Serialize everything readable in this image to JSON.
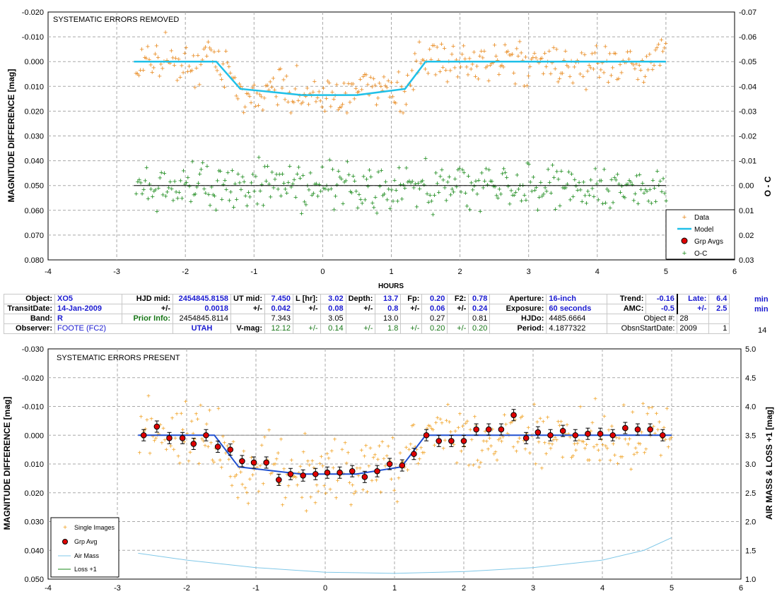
{
  "chart_data": [
    {
      "type": "scatter",
      "title": "SYSTEMATIC ERRORS REMOVED",
      "xlabel": "HOURS",
      "ylabel": "MAGNITUDE DIFFERENCE [mag]",
      "y2label": "O - C",
      "xlim": [
        -4,
        6
      ],
      "ylim": [
        -0.02,
        0.08
      ],
      "y_inverted": true,
      "y2lim": [
        -0.07,
        0.03
      ],
      "xticks": [
        "-4",
        "-3",
        "-2",
        "-1",
        "0",
        "1",
        "2",
        "3",
        "4",
        "5",
        "6"
      ],
      "yticks": [
        "-0.020",
        "-0.010",
        "0.000",
        "0.010",
        "0.020",
        "0.030",
        "0.040",
        "0.050",
        "0.060",
        "0.070",
        "0.080"
      ],
      "y2ticks": [
        "-0.07",
        "-0.06",
        "-0.05",
        "-0.04",
        "-0.03",
        "-0.02",
        "-0.01",
        "0.00",
        "0.01",
        "0.02",
        "0.03"
      ],
      "grid": true,
      "legend_position": "bottom-right",
      "legend": [
        "Data",
        "Model",
        "Grp Avgs",
        "O-C"
      ],
      "colors": {
        "data": "#e8891e",
        "model": "#20c0e8",
        "grp": "#e00000",
        "oc": "#1a8a1a",
        "zero": "#000000"
      },
      "model": {
        "x": [
          -2.75,
          -1.55,
          -1.2,
          -0.3,
          0.5,
          1.2,
          1.5,
          5.0
        ],
        "y": [
          0.0,
          0.0,
          0.011,
          0.0135,
          0.0135,
          0.011,
          0.0,
          0.0
        ]
      },
      "oc_zero_line": {
        "x": [
          -2.75,
          5.0
        ],
        "y": [
          0.05,
          0.05
        ]
      }
    },
    {
      "type": "scatter",
      "title": "SYSTEMATIC ERRORS PRESENT",
      "xlabel": "",
      "ylabel": "MAGNITUDE DIFFERENCE [mag]",
      "y2label": "AIR MASS & LOSS +1 [mag]",
      "xlim": [
        -4,
        6
      ],
      "ylim": [
        -0.03,
        0.05
      ],
      "y_inverted": true,
      "y2lim": [
        1.0,
        5.0
      ],
      "xticks": [
        "-4",
        "-3",
        "-2",
        "-1",
        "0",
        "1",
        "2",
        "3",
        "4",
        "5",
        "6"
      ],
      "yticks": [
        "-0.030",
        "-0.020",
        "-0.010",
        "0.000",
        "0.010",
        "0.020",
        "0.030",
        "0.040",
        "0.050"
      ],
      "y2ticks": [
        "1.0",
        "1.5",
        "2.0",
        "2.5",
        "3.0",
        "3.5",
        "4.0",
        "4.5",
        "5.0"
      ],
      "grid": true,
      "legend_position": "bottom-left",
      "legend": [
        "Single Images",
        "Grp Avg",
        "Air Mass",
        "Loss +1"
      ],
      "colors": {
        "single": "#f0a020",
        "grp": "#e00000",
        "model": "#2050d0",
        "airmass": "#80c8e8",
        "loss": "#1a8a1a",
        "baseline": "#909090"
      },
      "grp_avg": {
        "x": [
          -2.62,
          -2.43,
          -2.25,
          -2.06,
          -1.9,
          -1.72,
          -1.55,
          -1.37,
          -1.2,
          -1.03,
          -0.85,
          -0.67,
          -0.5,
          -0.32,
          -0.14,
          0.03,
          0.21,
          0.39,
          0.57,
          0.75,
          0.93,
          1.11,
          1.28,
          1.46,
          1.64,
          1.82,
          2.0,
          2.18,
          2.36,
          2.54,
          2.72,
          2.9,
          3.07,
          3.25,
          3.43,
          3.61,
          3.79,
          3.97,
          4.15,
          4.33,
          4.51,
          4.69,
          4.87
        ],
        "y": [
          0.0,
          -0.003,
          0.001,
          0.001,
          0.003,
          0.0,
          0.004,
          0.005,
          0.009,
          0.0095,
          0.0095,
          0.0155,
          0.0135,
          0.014,
          0.0135,
          0.013,
          0.013,
          0.0125,
          0.0145,
          0.0125,
          0.01,
          0.0105,
          0.0065,
          0.0,
          0.002,
          0.002,
          0.002,
          -0.002,
          -0.002,
          -0.002,
          -0.007,
          0.001,
          -0.001,
          0.0,
          -0.0015,
          0.0,
          -0.0005,
          -0.0005,
          0.0,
          -0.0025,
          -0.002,
          -0.002,
          0.0
        ]
      },
      "model": {
        "x": [
          -2.7,
          -1.6,
          -1.25,
          -0.35,
          0.45,
          1.1,
          1.45,
          5.0
        ],
        "y": [
          0.0,
          0.0,
          0.011,
          0.0135,
          0.0135,
          0.011,
          0.0,
          0.0
        ]
      },
      "baseline": {
        "x": [
          -2.7,
          5.0
        ],
        "y": [
          0.0,
          0.0
        ]
      },
      "airmass": {
        "x": [
          -2.7,
          -2.0,
          -1.0,
          0.0,
          1.0,
          2.0,
          3.0,
          4.0,
          4.6,
          5.0
        ],
        "y": [
          1.45,
          1.33,
          1.2,
          1.12,
          1.1,
          1.13,
          1.2,
          1.33,
          1.5,
          1.72
        ]
      }
    }
  ],
  "info": {
    "row1": {
      "object_label": "Object:",
      "object_value": "XO5",
      "hjd_mid_label": "HJD mid:",
      "hjd_mid_value": "2454845.8158",
      "ut_mid_label": "UT mid:",
      "ut_mid_value": "7.450",
      "l_hr_label": "L [hr]:",
      "l_hr_value": "3.02",
      "depth_label": "Depth:",
      "depth_value": "13.7",
      "fp_label": "Fp:",
      "fp_value": "0.20",
      "f2_label": "F2:",
      "f2_value": "0.78",
      "aperture_label": "Aperture:",
      "aperture_value": "16-inch",
      "trend_label": "Trend:",
      "trend_value": "-0.16",
      "late_label": "Late:",
      "late_value": "6.4",
      "late_unit": "min"
    },
    "row2": {
      "transitdate_label": "TransitDate:",
      "transitdate_value": "14-Jan-2009",
      "pm1_label": "+/-",
      "pm1_value": "0.0018",
      "pm2_label": "+/-",
      "pm2_value": "0.042",
      "pm3_label": "+/-",
      "pm3_value": "0.08",
      "pm4_label": "+/-",
      "pm4_value": "0.8",
      "pm5_label": "+/-",
      "pm5_value": "0.06",
      "pm6_label": "+/-",
      "pm6_value": "0.24",
      "exposure_label": "Exposure:",
      "exposure_value": "60 seconds",
      "amc_label": "AMC:",
      "amc_value": "-0.5",
      "pm7_label": "+/-",
      "pm7_value": "2.5",
      "pm7_unit": "min"
    },
    "row3": {
      "band_label": "Band:",
      "band_value": "R",
      "prior_label": "Prior Info:",
      "prior_hjd": "2454845.8114",
      "prior_ut": "7.343",
      "prior_l": "3.05",
      "prior_depth": "13.0",
      "prior_fp": "0.27",
      "prior_f2": "0.81",
      "hjdo_label": "HJDo:",
      "hjdo_value": "4485.6664",
      "objnum_label": "Object #:",
      "objnum_value": "28"
    },
    "row4": {
      "observer_label": "Observer:",
      "observer_value": "FOOTE (FC2)",
      "location_value": "UTAH",
      "vmag_label": "V-mag:",
      "vmag_value": "12.12",
      "pm_a_label": "+/-",
      "pm_a_value": "0.14",
      "pm_b_label": "+/-",
      "pm_b_value": "1.8",
      "pm_c_label": "+/-",
      "pm_c_value": "0.20",
      "pm_d_label": "+/-",
      "pm_d_value": "0.20",
      "period_label": "Period:",
      "period_value": "4.1877322",
      "obsstart_label": "ObsnStartDate:",
      "obsstart_year": "2009",
      "obsstart_month": "1",
      "obsstart_day": "14"
    }
  }
}
